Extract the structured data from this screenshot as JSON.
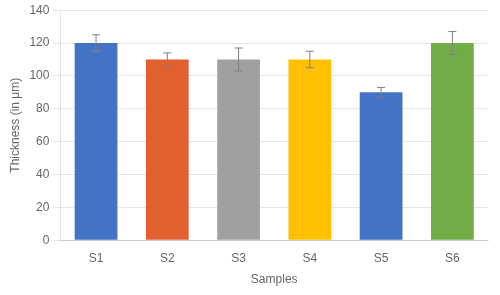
{
  "chart_data": {
    "type": "bar",
    "categories": [
      "S1",
      "S2",
      "S3",
      "S4",
      "S5",
      "S6"
    ],
    "values": [
      120,
      110,
      110,
      110,
      90,
      120
    ],
    "errors": [
      5,
      4,
      7,
      5,
      3,
      7
    ],
    "colors": [
      "#4472C4",
      "#E06030",
      "#A0A0A0",
      "#FFC000",
      "#4472C4",
      "#70AD47"
    ],
    "xlabel": "Samples",
    "ylabel": "Thickness (in μm)",
    "ylim": [
      0,
      140
    ],
    "yticks": [
      0,
      20,
      40,
      60,
      80,
      100,
      120,
      140
    ],
    "grid": true
  }
}
